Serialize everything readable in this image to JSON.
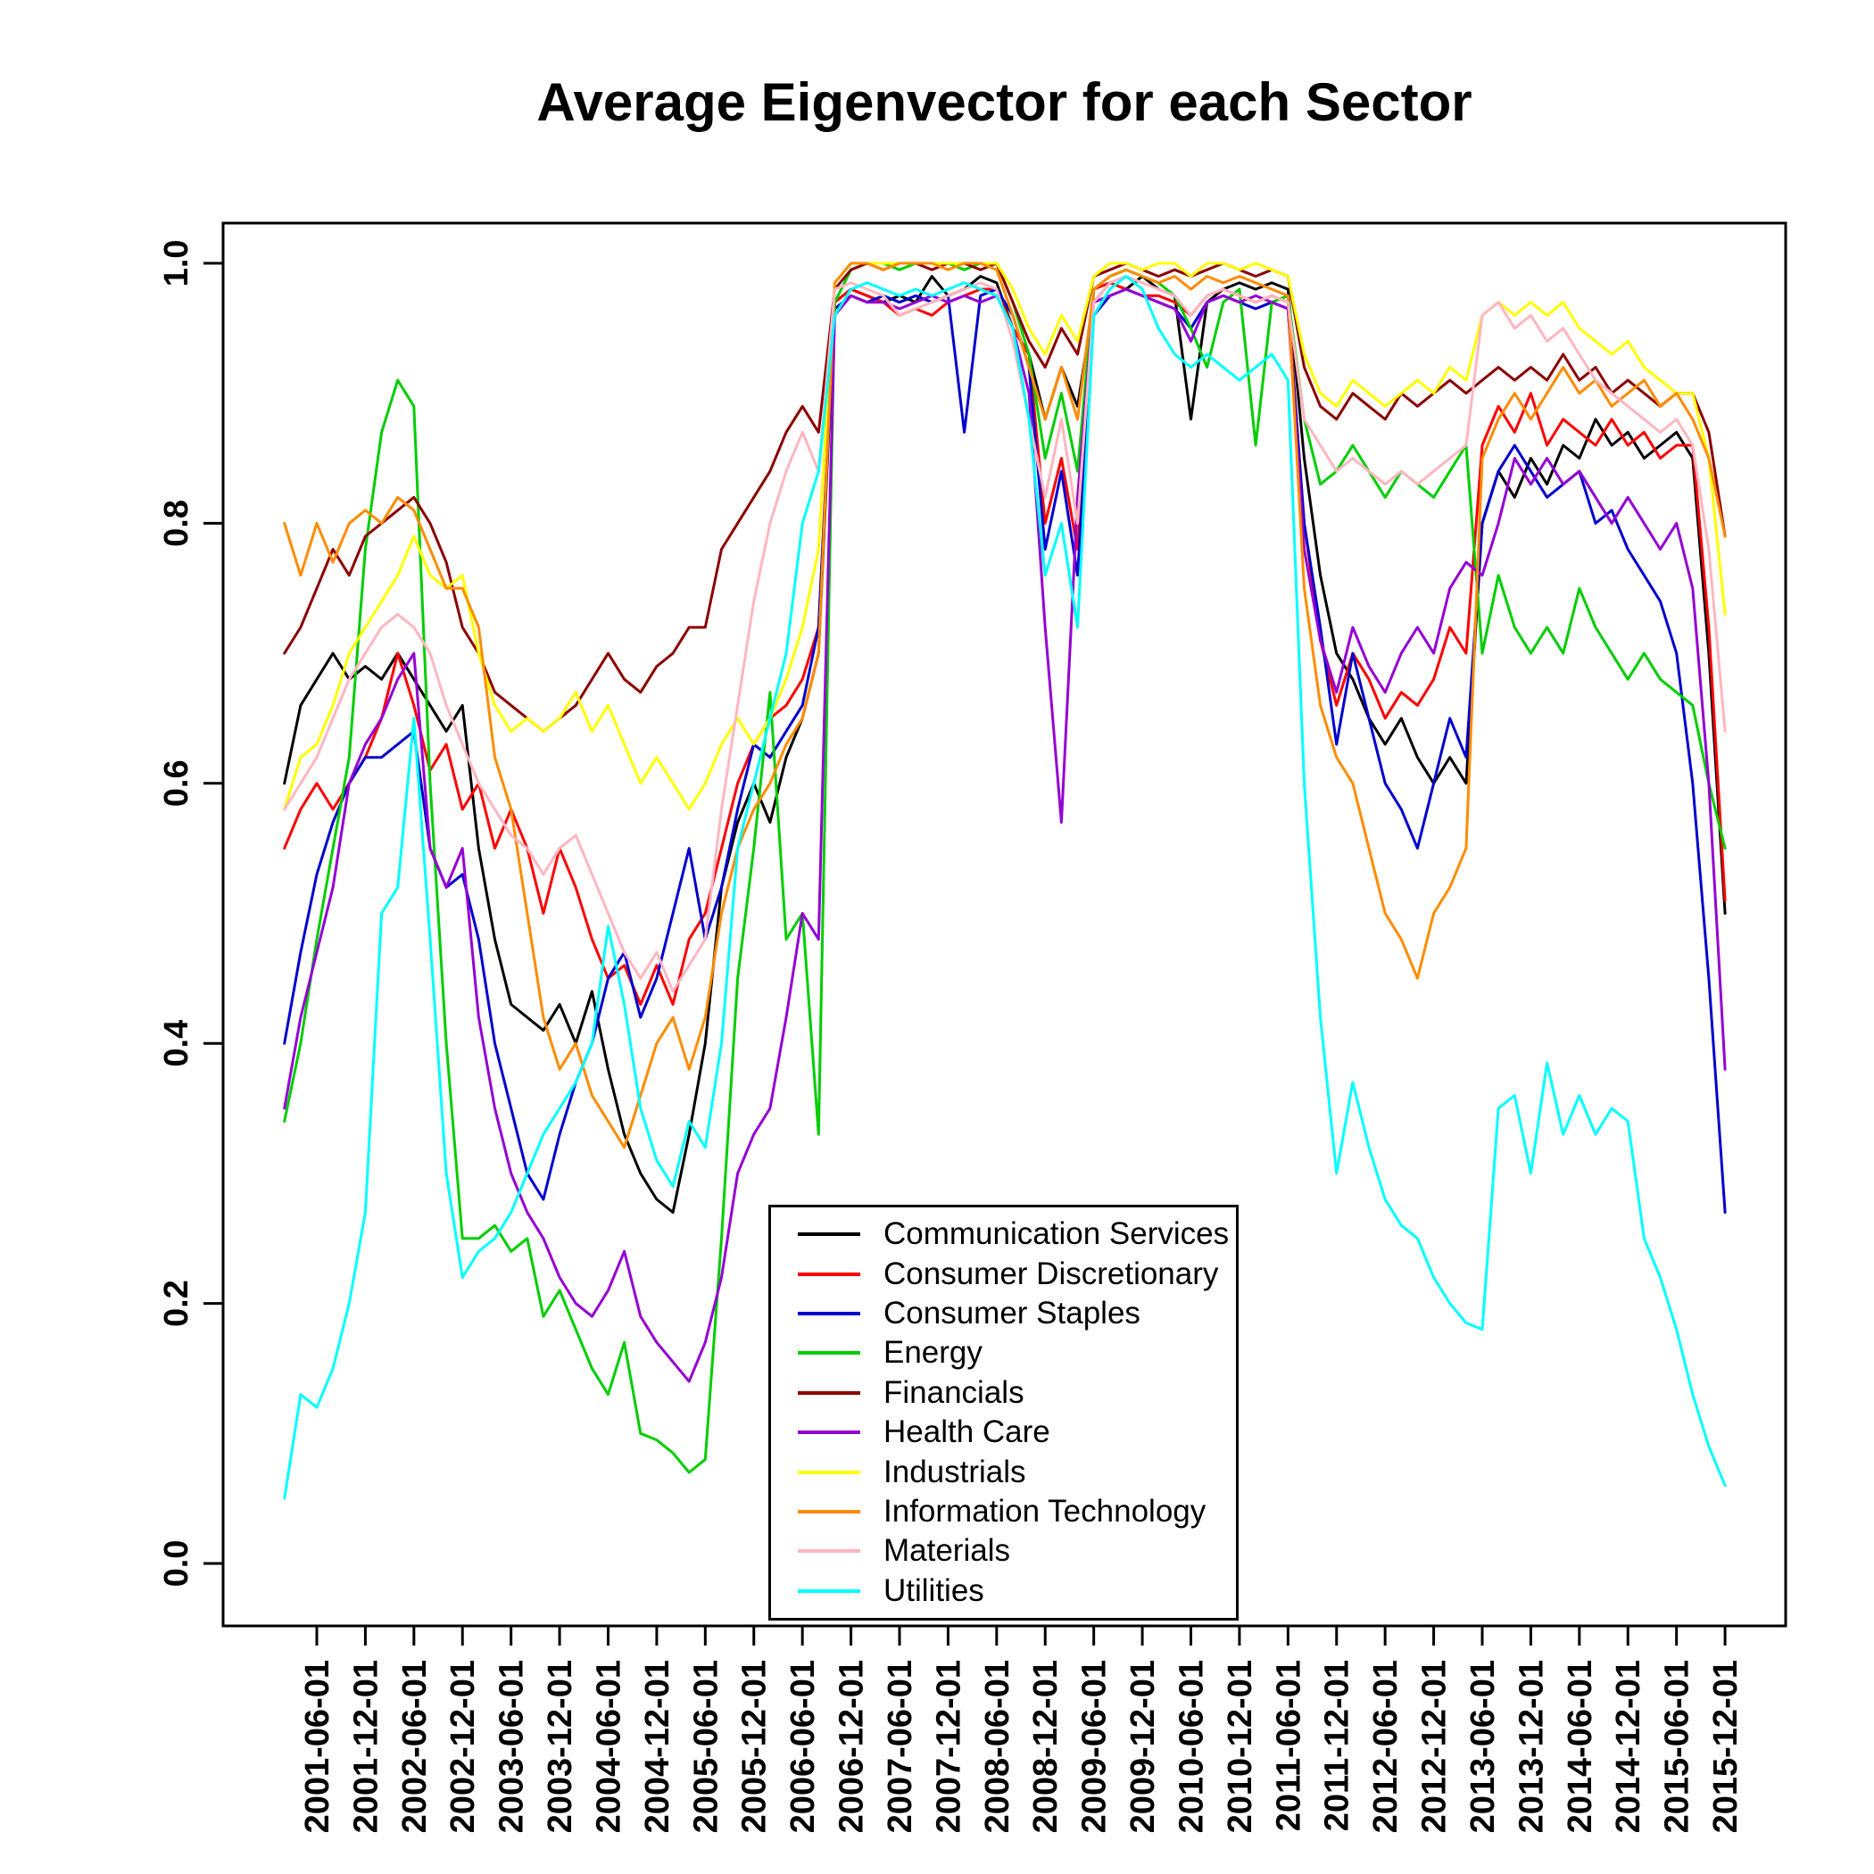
{
  "title": "Average Eigenvector for each Sector",
  "chart_data": {
    "type": "line",
    "title": "Average Eigenvector for each Sector",
    "xlabel": "",
    "ylabel": "",
    "ylim": [
      0.0,
      1.0
    ],
    "grid": false,
    "legend_position": "inside-bottom-center",
    "x_start": "2001-02",
    "x_step_months": 2,
    "n_points": 90,
    "y_ticks": [
      "0.0",
      "0.2",
      "0.4",
      "0.6",
      "0.8",
      "1.0"
    ],
    "x_tick_labels": [
      "2001-06-01",
      "2001-12-01",
      "2002-06-01",
      "2002-12-01",
      "2003-06-01",
      "2003-12-01",
      "2004-06-01",
      "2004-12-01",
      "2005-06-01",
      "2005-12-01",
      "2006-06-01",
      "2006-12-01",
      "2007-06-01",
      "2007-12-01",
      "2008-06-01",
      "2008-12-01",
      "2009-06-01",
      "2009-12-01",
      "2010-06-01",
      "2010-12-01",
      "2011-06-01",
      "2011-12-01",
      "2012-06-01",
      "2012-12-01",
      "2013-06-01",
      "2013-12-01",
      "2014-06-01",
      "2014-12-01",
      "2015-06-01",
      "2015-12-01"
    ],
    "series": [
      {
        "name": "Communication Services",
        "color": "#000000",
        "values": [
          0.6,
          0.66,
          0.68,
          0.7,
          0.68,
          0.69,
          0.68,
          0.7,
          0.68,
          0.66,
          0.64,
          0.66,
          0.55,
          0.48,
          0.43,
          0.42,
          0.41,
          0.43,
          0.4,
          0.44,
          0.38,
          0.33,
          0.3,
          0.28,
          0.27,
          0.33,
          0.4,
          0.52,
          0.57,
          0.6,
          0.57,
          0.62,
          0.65,
          0.7,
          0.97,
          0.98,
          0.975,
          0.97,
          0.975,
          0.97,
          0.99,
          0.975,
          0.98,
          0.99,
          0.985,
          0.95,
          0.93,
          0.88,
          0.92,
          0.89,
          0.97,
          0.985,
          0.98,
          0.99,
          0.98,
          0.975,
          0.88,
          0.97,
          0.98,
          0.985,
          0.98,
          0.985,
          0.98,
          0.85,
          0.76,
          0.7,
          0.68,
          0.65,
          0.63,
          0.65,
          0.62,
          0.6,
          0.62,
          0.6,
          0.8,
          0.84,
          0.82,
          0.85,
          0.83,
          0.86,
          0.85,
          0.88,
          0.86,
          0.87,
          0.85,
          0.86,
          0.87,
          0.85,
          0.7,
          0.5
        ]
      },
      {
        "name": "Consumer Discretionary",
        "color": "#FF0000",
        "values": [
          0.55,
          0.58,
          0.6,
          0.58,
          0.6,
          0.62,
          0.65,
          0.7,
          0.66,
          0.61,
          0.63,
          0.58,
          0.6,
          0.55,
          0.58,
          0.55,
          0.5,
          0.55,
          0.52,
          0.48,
          0.45,
          0.46,
          0.43,
          0.46,
          0.43,
          0.48,
          0.5,
          0.55,
          0.6,
          0.63,
          0.65,
          0.66,
          0.68,
          0.72,
          0.97,
          0.98,
          0.975,
          0.97,
          0.96,
          0.965,
          0.96,
          0.97,
          0.975,
          0.98,
          0.98,
          0.95,
          0.93,
          0.8,
          0.85,
          0.78,
          0.98,
          0.985,
          0.98,
          0.975,
          0.975,
          0.97,
          0.96,
          0.975,
          0.98,
          0.975,
          0.97,
          0.975,
          0.97,
          0.8,
          0.71,
          0.66,
          0.7,
          0.68,
          0.65,
          0.67,
          0.66,
          0.68,
          0.72,
          0.7,
          0.86,
          0.89,
          0.87,
          0.9,
          0.86,
          0.88,
          0.87,
          0.86,
          0.88,
          0.86,
          0.87,
          0.85,
          0.86,
          0.86,
          0.72,
          0.51
        ]
      },
      {
        "name": "Consumer Staples",
        "color": "#0000CD",
        "values": [
          0.4,
          0.47,
          0.53,
          0.57,
          0.6,
          0.62,
          0.62,
          0.63,
          0.64,
          0.55,
          0.52,
          0.53,
          0.48,
          0.4,
          0.35,
          0.3,
          0.28,
          0.33,
          0.37,
          0.4,
          0.45,
          0.47,
          0.42,
          0.45,
          0.5,
          0.55,
          0.48,
          0.52,
          0.58,
          0.63,
          0.62,
          0.64,
          0.66,
          0.72,
          0.965,
          0.975,
          0.97,
          0.975,
          0.97,
          0.975,
          0.97,
          0.975,
          0.87,
          0.975,
          0.98,
          0.96,
          0.92,
          0.78,
          0.84,
          0.76,
          0.96,
          0.975,
          0.98,
          0.975,
          0.97,
          0.965,
          0.95,
          0.97,
          0.975,
          0.97,
          0.965,
          0.97,
          0.965,
          0.8,
          0.72,
          0.63,
          0.7,
          0.65,
          0.6,
          0.58,
          0.55,
          0.6,
          0.65,
          0.62,
          0.8,
          0.84,
          0.86,
          0.84,
          0.82,
          0.83,
          0.84,
          0.8,
          0.81,
          0.78,
          0.76,
          0.74,
          0.7,
          0.6,
          0.45,
          0.27
        ]
      },
      {
        "name": "Energy",
        "color": "#00CD00",
        "values": [
          0.34,
          0.4,
          0.48,
          0.55,
          0.62,
          0.78,
          0.87,
          0.91,
          0.89,
          0.6,
          0.4,
          0.25,
          0.25,
          0.26,
          0.24,
          0.25,
          0.19,
          0.21,
          0.18,
          0.15,
          0.13,
          0.17,
          0.1,
          0.095,
          0.085,
          0.07,
          0.08,
          0.25,
          0.45,
          0.55,
          0.67,
          0.48,
          0.5,
          0.33,
          0.97,
          0.995,
          1.0,
          1.0,
          0.995,
          1.0,
          1.0,
          1.0,
          0.995,
          1.0,
          1.0,
          0.97,
          0.93,
          0.85,
          0.9,
          0.84,
          0.98,
          0.99,
          0.995,
          0.99,
          0.985,
          0.975,
          0.95,
          0.92,
          0.97,
          0.98,
          0.86,
          0.97,
          0.975,
          0.88,
          0.83,
          0.84,
          0.86,
          0.84,
          0.82,
          0.84,
          0.83,
          0.82,
          0.84,
          0.86,
          0.7,
          0.76,
          0.72,
          0.7,
          0.72,
          0.7,
          0.75,
          0.72,
          0.7,
          0.68,
          0.7,
          0.68,
          0.67,
          0.66,
          0.6,
          0.55
        ]
      },
      {
        "name": "Financials",
        "color": "#8B0000",
        "values": [
          0.7,
          0.72,
          0.75,
          0.78,
          0.76,
          0.79,
          0.8,
          0.81,
          0.82,
          0.8,
          0.77,
          0.72,
          0.7,
          0.67,
          0.66,
          0.65,
          0.64,
          0.65,
          0.66,
          0.68,
          0.7,
          0.68,
          0.67,
          0.69,
          0.7,
          0.72,
          0.72,
          0.78,
          0.8,
          0.82,
          0.84,
          0.87,
          0.89,
          0.87,
          0.98,
          0.995,
          1.0,
          0.995,
          1.0,
          1.0,
          0.995,
          1.0,
          1.0,
          0.995,
          1.0,
          0.97,
          0.94,
          0.92,
          0.95,
          0.93,
          0.99,
          0.995,
          1.0,
          0.995,
          0.99,
          0.995,
          0.99,
          0.995,
          1.0,
          0.995,
          0.99,
          0.995,
          0.99,
          0.92,
          0.89,
          0.88,
          0.9,
          0.89,
          0.88,
          0.9,
          0.89,
          0.9,
          0.91,
          0.9,
          0.91,
          0.92,
          0.91,
          0.92,
          0.91,
          0.93,
          0.91,
          0.92,
          0.9,
          0.91,
          0.9,
          0.89,
          0.9,
          0.9,
          0.87,
          0.79
        ]
      },
      {
        "name": "Health Care",
        "color": "#9400D3",
        "values": [
          0.35,
          0.42,
          0.47,
          0.52,
          0.6,
          0.63,
          0.65,
          0.68,
          0.7,
          0.55,
          0.52,
          0.55,
          0.42,
          0.35,
          0.3,
          0.27,
          0.25,
          0.22,
          0.2,
          0.19,
          0.21,
          0.24,
          0.19,
          0.17,
          0.155,
          0.14,
          0.17,
          0.22,
          0.3,
          0.33,
          0.35,
          0.42,
          0.5,
          0.48,
          0.96,
          0.975,
          0.97,
          0.97,
          0.965,
          0.97,
          0.975,
          0.97,
          0.975,
          0.97,
          0.975,
          0.95,
          0.9,
          0.72,
          0.57,
          0.82,
          0.97,
          0.975,
          0.98,
          0.975,
          0.97,
          0.965,
          0.94,
          0.97,
          0.975,
          0.97,
          0.975,
          0.97,
          0.965,
          0.78,
          0.71,
          0.67,
          0.72,
          0.69,
          0.67,
          0.7,
          0.72,
          0.7,
          0.75,
          0.77,
          0.76,
          0.8,
          0.85,
          0.83,
          0.85,
          0.83,
          0.84,
          0.82,
          0.8,
          0.82,
          0.8,
          0.78,
          0.8,
          0.75,
          0.6,
          0.38
        ]
      },
      {
        "name": "Industrials",
        "color": "#FFFF00",
        "values": [
          0.58,
          0.62,
          0.63,
          0.66,
          0.7,
          0.72,
          0.74,
          0.76,
          0.79,
          0.76,
          0.75,
          0.76,
          0.7,
          0.66,
          0.64,
          0.65,
          0.64,
          0.65,
          0.67,
          0.64,
          0.66,
          0.63,
          0.6,
          0.62,
          0.6,
          0.58,
          0.6,
          0.63,
          0.65,
          0.63,
          0.65,
          0.68,
          0.72,
          0.78,
          0.985,
          1.0,
          1.0,
          1.0,
          1.0,
          1.0,
          1.0,
          1.0,
          1.0,
          1.0,
          1.0,
          0.98,
          0.95,
          0.93,
          0.96,
          0.94,
          0.99,
          1.0,
          1.0,
          0.995,
          1.0,
          1.0,
          0.99,
          1.0,
          1.0,
          0.995,
          1.0,
          0.995,
          0.99,
          0.93,
          0.9,
          0.89,
          0.91,
          0.9,
          0.89,
          0.9,
          0.91,
          0.9,
          0.92,
          0.91,
          0.96,
          0.97,
          0.96,
          0.97,
          0.96,
          0.97,
          0.95,
          0.94,
          0.93,
          0.94,
          0.92,
          0.91,
          0.9,
          0.9,
          0.85,
          0.73
        ]
      },
      {
        "name": "Information Technology",
        "color": "#FF8C00",
        "values": [
          0.8,
          0.76,
          0.8,
          0.77,
          0.8,
          0.81,
          0.8,
          0.82,
          0.81,
          0.78,
          0.75,
          0.75,
          0.72,
          0.62,
          0.58,
          0.5,
          0.42,
          0.38,
          0.4,
          0.36,
          0.34,
          0.32,
          0.36,
          0.4,
          0.42,
          0.38,
          0.42,
          0.5,
          0.55,
          0.58,
          0.6,
          0.63,
          0.65,
          0.7,
          0.985,
          1.0,
          1.0,
          0.995,
          1.0,
          1.0,
          1.0,
          0.995,
          1.0,
          1.0,
          0.995,
          0.96,
          0.92,
          0.88,
          0.92,
          0.88,
          0.98,
          0.99,
          0.995,
          0.99,
          0.985,
          0.99,
          0.98,
          0.99,
          0.985,
          0.99,
          0.985,
          0.98,
          0.975,
          0.75,
          0.66,
          0.62,
          0.6,
          0.55,
          0.5,
          0.48,
          0.45,
          0.5,
          0.52,
          0.55,
          0.85,
          0.88,
          0.9,
          0.88,
          0.9,
          0.92,
          0.9,
          0.91,
          0.89,
          0.9,
          0.91,
          0.89,
          0.9,
          0.88,
          0.85,
          0.79
        ]
      },
      {
        "name": "Materials",
        "color": "#FFB6C1",
        "values": [
          0.58,
          0.6,
          0.62,
          0.65,
          0.68,
          0.7,
          0.72,
          0.73,
          0.72,
          0.7,
          0.66,
          0.63,
          0.6,
          0.58,
          0.56,
          0.55,
          0.53,
          0.55,
          0.56,
          0.53,
          0.5,
          0.47,
          0.45,
          0.47,
          0.44,
          0.46,
          0.48,
          0.58,
          0.66,
          0.74,
          0.8,
          0.84,
          0.87,
          0.84,
          0.98,
          0.985,
          0.98,
          0.975,
          0.96,
          0.965,
          0.97,
          0.975,
          0.98,
          0.985,
          0.98,
          0.94,
          0.88,
          0.82,
          0.88,
          0.8,
          0.97,
          0.985,
          0.99,
          0.985,
          0.98,
          0.975,
          0.96,
          0.975,
          0.98,
          0.975,
          0.97,
          0.975,
          0.97,
          0.88,
          0.86,
          0.84,
          0.85,
          0.84,
          0.83,
          0.84,
          0.83,
          0.84,
          0.85,
          0.86,
          0.96,
          0.97,
          0.95,
          0.96,
          0.94,
          0.95,
          0.93,
          0.91,
          0.9,
          0.89,
          0.88,
          0.87,
          0.88,
          0.86,
          0.78,
          0.64
        ]
      },
      {
        "name": "Utilities",
        "color": "#00FFFF",
        "values": [
          0.05,
          0.13,
          0.12,
          0.15,
          0.2,
          0.27,
          0.5,
          0.52,
          0.65,
          0.48,
          0.3,
          0.22,
          0.24,
          0.25,
          0.27,
          0.3,
          0.33,
          0.35,
          0.37,
          0.4,
          0.49,
          0.43,
          0.35,
          0.31,
          0.29,
          0.34,
          0.32,
          0.4,
          0.55,
          0.6,
          0.65,
          0.7,
          0.8,
          0.84,
          0.96,
          0.98,
          0.985,
          0.98,
          0.975,
          0.98,
          0.975,
          0.98,
          0.985,
          0.98,
          0.975,
          0.95,
          0.88,
          0.76,
          0.8,
          0.72,
          0.96,
          0.98,
          0.99,
          0.98,
          0.95,
          0.93,
          0.92,
          0.93,
          0.92,
          0.91,
          0.92,
          0.93,
          0.91,
          0.6,
          0.42,
          0.3,
          0.37,
          0.32,
          0.28,
          0.26,
          0.25,
          0.22,
          0.2,
          0.185,
          0.18,
          0.35,
          0.36,
          0.3,
          0.385,
          0.33,
          0.36,
          0.33,
          0.35,
          0.34,
          0.25,
          0.22,
          0.18,
          0.13,
          0.09,
          0.06
        ]
      }
    ]
  }
}
